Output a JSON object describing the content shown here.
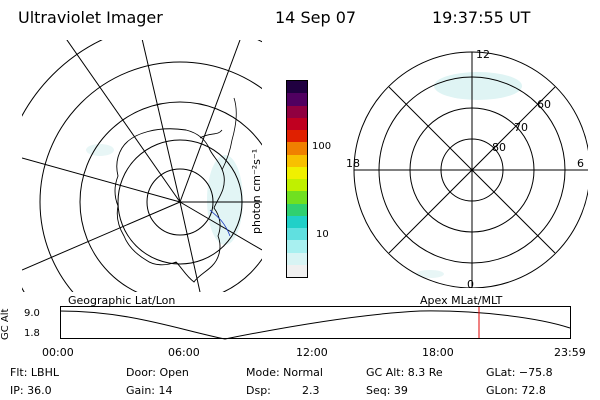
{
  "header": {
    "instrument": "Ultraviolet Imager",
    "date": "14 Sep 07",
    "time": "19:37:55 UT"
  },
  "left_map": {
    "caption": "Geographic Lat/Lon"
  },
  "right_map": {
    "caption": "Apex MLat/MLT",
    "mlt_labels": {
      "top": "12",
      "bottom": "0",
      "left": "18",
      "right": "6"
    },
    "lat_labels": [
      "60",
      "70",
      "80"
    ]
  },
  "colorbar": {
    "unit_label": "photon cm⁻²s⁻¹",
    "ticks": [
      "100",
      "10"
    ],
    "colors": [
      "#f0f0f0",
      "#d8f4f4",
      "#a8f0f0",
      "#60e0e0",
      "#20d0c8",
      "#30d070",
      "#70e020",
      "#c0f000",
      "#f0f000",
      "#f8c000",
      "#f08000",
      "#e02000",
      "#c00020",
      "#900040",
      "#500060",
      "#200040"
    ]
  },
  "timeline": {
    "y_label": "GC Alt",
    "y_ticks": [
      "9.0",
      "1.8"
    ],
    "x_ticks": [
      "00:00",
      "06:00",
      "12:00",
      "18:00",
      "23:59"
    ],
    "current_time_marker_color": "#e00000"
  },
  "info": {
    "filter": "Flt: LBHL",
    "ip": "IP: 36.0",
    "door": "Door: Open",
    "gain": "Gain: 14",
    "mode": "Mode: Normal",
    "dsp_label": "Dsp:",
    "dsp_value": "2.3",
    "gc_alt": "GC Alt: 8.3 Re",
    "seq": "Seq: 39",
    "glat": "GLat: −75.8",
    "glon": "GLon: 72.8"
  }
}
